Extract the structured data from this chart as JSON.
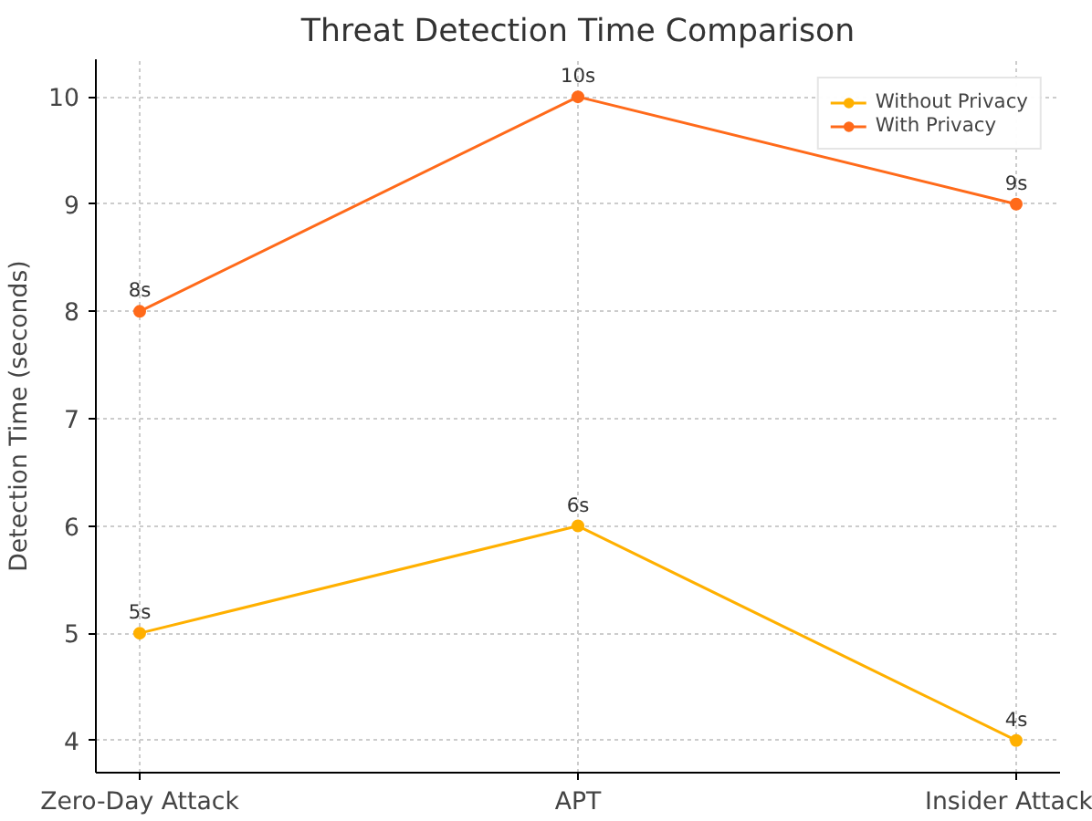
{
  "chart_data": {
    "type": "line",
    "title": "Threat Detection Time Comparison",
    "ylabel": "Detection Time (seconds)",
    "categories": [
      "Zero-Day Attack",
      "APT",
      "Insider Attack"
    ],
    "series": [
      {
        "name": "Without Privacy",
        "color": "#ffb000",
        "values": [
          5,
          6,
          4
        ],
        "value_labels": [
          "5s",
          "6s",
          "4s"
        ]
      },
      {
        "name": "With Privacy",
        "color": "#ff6a1a",
        "values": [
          8,
          10,
          9
        ],
        "value_labels": [
          "8s",
          "10s",
          "9s"
        ]
      }
    ],
    "ylim": [
      3.7,
      10.35
    ],
    "yticks": [
      4,
      5,
      6,
      7,
      8,
      9,
      10
    ],
    "grid": true,
    "legend": "top right",
    "marker": "circle",
    "line_style": "solid"
  }
}
